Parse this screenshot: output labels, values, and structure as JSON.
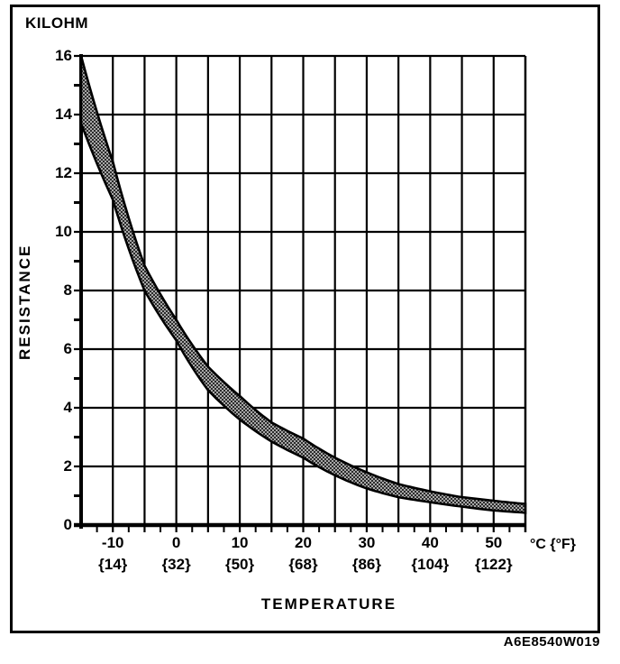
{
  "figure": {
    "ref_code": "A6E8540W019"
  },
  "colors": {
    "ink": "#000000",
    "paper": "#ffffff",
    "band_dark": "#2b2b2b",
    "band_light": "#a8a8a8"
  },
  "chart_data": {
    "type": "area",
    "title": "",
    "xlabel": "TEMPERATURE",
    "ylabel": "RESISTANCE",
    "y_axis_unit_label": "KILOHM",
    "x_axis_unit_label": "°C {°F}",
    "xlim": [
      -15,
      55
    ],
    "ylim": [
      0,
      16
    ],
    "grid": "on",
    "x_gridline_step": 5,
    "y_gridline_step": 2,
    "x_minor_tick_step": 2.5,
    "y_minor_tick_step": 1,
    "x_ticks": [
      {
        "t": -10,
        "c": "-10",
        "f": "{14}"
      },
      {
        "t": 0,
        "c": "0",
        "f": "{32}"
      },
      {
        "t": 10,
        "c": "10",
        "f": "{50}"
      },
      {
        "t": 20,
        "c": "20",
        "f": "{68}"
      },
      {
        "t": 30,
        "c": "30",
        "f": "{86}"
      },
      {
        "t": 40,
        "c": "40",
        "f": "{104}"
      },
      {
        "t": 50,
        "c": "50",
        "f": "{122}"
      }
    ],
    "y_ticks": [
      {
        "v": 0,
        "label": "0"
      },
      {
        "v": 2,
        "label": "2"
      },
      {
        "v": 4,
        "label": "4"
      },
      {
        "v": 6,
        "label": "6"
      },
      {
        "v": 8,
        "label": "8"
      },
      {
        "v": 10,
        "label": "10"
      },
      {
        "v": 12,
        "label": "12"
      },
      {
        "v": 14,
        "label": "14"
      },
      {
        "v": 16,
        "label": "16"
      }
    ],
    "band": {
      "name": "resistance-tolerance-band",
      "temps_c": [
        -15,
        -10,
        -5,
        0,
        5,
        10,
        15,
        20,
        25,
        30,
        35,
        40,
        45,
        50,
        55
      ],
      "lower_kohm": [
        13.7,
        11.1,
        8.0,
        6.3,
        4.6,
        3.6,
        2.85,
        2.3,
        1.7,
        1.25,
        0.95,
        0.78,
        0.63,
        0.5,
        0.42
      ],
      "upper_kohm": [
        16.0,
        12.4,
        8.85,
        7.0,
        5.4,
        4.4,
        3.5,
        2.95,
        2.3,
        1.8,
        1.4,
        1.15,
        0.95,
        0.83,
        0.72
      ]
    }
  }
}
